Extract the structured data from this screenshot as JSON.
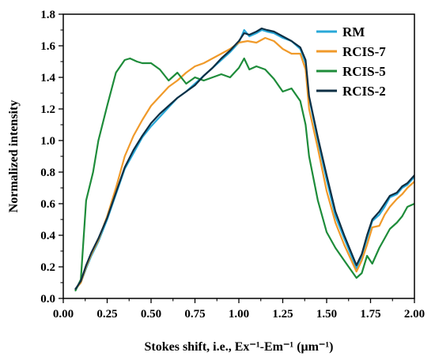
{
  "chart_data": {
    "type": "line",
    "xlabel": "Stokes shift, i.e., Ex⁻¹-Em⁻¹ (μm⁻¹)",
    "ylabel": "Normalized intensity",
    "xlim": [
      0.0,
      2.0
    ],
    "ylim": [
      0.0,
      1.8
    ],
    "xticks": [
      "0.00",
      "0.25",
      "0.50",
      "0.75",
      "1.00",
      "1.25",
      "1.50",
      "1.75",
      "2.00"
    ],
    "yticks": [
      "0.0",
      "0.2",
      "0.4",
      "0.6",
      "0.8",
      "1.0",
      "1.2",
      "1.4",
      "1.6",
      "1.8"
    ],
    "legend_position": "top-right",
    "grid": false,
    "series": [
      {
        "name": "RM",
        "color": "#29a8d8",
        "points": [
          [
            0.07,
            0.06
          ],
          [
            0.1,
            0.1
          ],
          [
            0.13,
            0.19
          ],
          [
            0.16,
            0.27
          ],
          [
            0.2,
            0.36
          ],
          [
            0.25,
            0.5
          ],
          [
            0.3,
            0.66
          ],
          [
            0.35,
            0.82
          ],
          [
            0.4,
            0.92
          ],
          [
            0.45,
            1.02
          ],
          [
            0.5,
            1.09
          ],
          [
            0.55,
            1.15
          ],
          [
            0.6,
            1.21
          ],
          [
            0.65,
            1.27
          ],
          [
            0.7,
            1.31
          ],
          [
            0.75,
            1.36
          ],
          [
            0.8,
            1.41
          ],
          [
            0.85,
            1.46
          ],
          [
            0.9,
            1.51
          ],
          [
            0.95,
            1.56
          ],
          [
            1.0,
            1.62
          ],
          [
            1.03,
            1.7
          ],
          [
            1.06,
            1.66
          ],
          [
            1.1,
            1.68
          ],
          [
            1.13,
            1.7
          ],
          [
            1.16,
            1.69
          ],
          [
            1.2,
            1.68
          ],
          [
            1.25,
            1.65
          ],
          [
            1.3,
            1.63
          ],
          [
            1.35,
            1.58
          ],
          [
            1.38,
            1.49
          ],
          [
            1.4,
            1.27
          ],
          [
            1.45,
            1.0
          ],
          [
            1.5,
            0.75
          ],
          [
            1.55,
            0.52
          ],
          [
            1.6,
            0.38
          ],
          [
            1.67,
            0.19
          ],
          [
            1.7,
            0.27
          ],
          [
            1.73,
            0.38
          ],
          [
            1.76,
            0.49
          ],
          [
            1.8,
            0.53
          ],
          [
            1.83,
            0.58
          ],
          [
            1.86,
            0.64
          ],
          [
            1.9,
            0.66
          ],
          [
            1.93,
            0.7
          ],
          [
            1.96,
            0.72
          ],
          [
            2.0,
            0.77
          ]
        ]
      },
      {
        "name": "RCIS-7",
        "color": "#f09a2a",
        "points": [
          [
            0.07,
            0.06
          ],
          [
            0.1,
            0.1
          ],
          [
            0.13,
            0.2
          ],
          [
            0.16,
            0.28
          ],
          [
            0.2,
            0.37
          ],
          [
            0.25,
            0.52
          ],
          [
            0.3,
            0.7
          ],
          [
            0.35,
            0.9
          ],
          [
            0.4,
            1.03
          ],
          [
            0.45,
            1.13
          ],
          [
            0.5,
            1.22
          ],
          [
            0.55,
            1.28
          ],
          [
            0.6,
            1.34
          ],
          [
            0.65,
            1.38
          ],
          [
            0.7,
            1.43
          ],
          [
            0.75,
            1.47
          ],
          [
            0.8,
            1.49
          ],
          [
            0.85,
            1.52
          ],
          [
            0.9,
            1.55
          ],
          [
            0.95,
            1.58
          ],
          [
            1.0,
            1.62
          ],
          [
            1.05,
            1.63
          ],
          [
            1.1,
            1.62
          ],
          [
            1.15,
            1.65
          ],
          [
            1.2,
            1.63
          ],
          [
            1.25,
            1.58
          ],
          [
            1.3,
            1.55
          ],
          [
            1.35,
            1.55
          ],
          [
            1.38,
            1.45
          ],
          [
            1.4,
            1.2
          ],
          [
            1.45,
            0.95
          ],
          [
            1.5,
            0.68
          ],
          [
            1.55,
            0.48
          ],
          [
            1.6,
            0.34
          ],
          [
            1.67,
            0.17
          ],
          [
            1.7,
            0.24
          ],
          [
            1.73,
            0.34
          ],
          [
            1.76,
            0.45
          ],
          [
            1.8,
            0.46
          ],
          [
            1.83,
            0.53
          ],
          [
            1.86,
            0.58
          ],
          [
            1.9,
            0.63
          ],
          [
            1.93,
            0.66
          ],
          [
            1.96,
            0.7
          ],
          [
            2.0,
            0.74
          ]
        ]
      },
      {
        "name": "RCIS-5",
        "color": "#1e8c3a",
        "points": [
          [
            0.07,
            0.05
          ],
          [
            0.1,
            0.12
          ],
          [
            0.13,
            0.62
          ],
          [
            0.17,
            0.8
          ],
          [
            0.2,
            1.0
          ],
          [
            0.25,
            1.22
          ],
          [
            0.3,
            1.43
          ],
          [
            0.35,
            1.51
          ],
          [
            0.38,
            1.52
          ],
          [
            0.42,
            1.5
          ],
          [
            0.45,
            1.49
          ],
          [
            0.5,
            1.49
          ],
          [
            0.55,
            1.45
          ],
          [
            0.6,
            1.38
          ],
          [
            0.65,
            1.43
          ],
          [
            0.7,
            1.36
          ],
          [
            0.75,
            1.4
          ],
          [
            0.8,
            1.38
          ],
          [
            0.85,
            1.4
          ],
          [
            0.9,
            1.42
          ],
          [
            0.95,
            1.4
          ],
          [
            1.0,
            1.46
          ],
          [
            1.03,
            1.52
          ],
          [
            1.06,
            1.45
          ],
          [
            1.1,
            1.47
          ],
          [
            1.15,
            1.45
          ],
          [
            1.2,
            1.39
          ],
          [
            1.25,
            1.31
          ],
          [
            1.3,
            1.33
          ],
          [
            1.35,
            1.25
          ],
          [
            1.38,
            1.1
          ],
          [
            1.4,
            0.9
          ],
          [
            1.45,
            0.62
          ],
          [
            1.5,
            0.42
          ],
          [
            1.55,
            0.32
          ],
          [
            1.6,
            0.24
          ],
          [
            1.67,
            0.13
          ],
          [
            1.7,
            0.16
          ],
          [
            1.73,
            0.27
          ],
          [
            1.76,
            0.22
          ],
          [
            1.8,
            0.32
          ],
          [
            1.83,
            0.38
          ],
          [
            1.86,
            0.44
          ],
          [
            1.9,
            0.48
          ],
          [
            1.93,
            0.52
          ],
          [
            1.96,
            0.58
          ],
          [
            2.0,
            0.6
          ]
        ]
      },
      {
        "name": "RCIS-2",
        "color": "#0e2f44",
        "points": [
          [
            0.07,
            0.06
          ],
          [
            0.1,
            0.11
          ],
          [
            0.13,
            0.21
          ],
          [
            0.16,
            0.29
          ],
          [
            0.2,
            0.38
          ],
          [
            0.25,
            0.51
          ],
          [
            0.3,
            0.67
          ],
          [
            0.35,
            0.83
          ],
          [
            0.4,
            0.94
          ],
          [
            0.45,
            1.03
          ],
          [
            0.5,
            1.11
          ],
          [
            0.55,
            1.17
          ],
          [
            0.6,
            1.22
          ],
          [
            0.65,
            1.27
          ],
          [
            0.7,
            1.31
          ],
          [
            0.75,
            1.35
          ],
          [
            0.8,
            1.41
          ],
          [
            0.85,
            1.46
          ],
          [
            0.9,
            1.52
          ],
          [
            0.95,
            1.57
          ],
          [
            1.0,
            1.63
          ],
          [
            1.03,
            1.68
          ],
          [
            1.06,
            1.67
          ],
          [
            1.1,
            1.69
          ],
          [
            1.13,
            1.71
          ],
          [
            1.16,
            1.7
          ],
          [
            1.2,
            1.69
          ],
          [
            1.25,
            1.66
          ],
          [
            1.3,
            1.63
          ],
          [
            1.35,
            1.59
          ],
          [
            1.38,
            1.51
          ],
          [
            1.4,
            1.28
          ],
          [
            1.45,
            1.02
          ],
          [
            1.5,
            0.78
          ],
          [
            1.55,
            0.55
          ],
          [
            1.6,
            0.4
          ],
          [
            1.67,
            0.21
          ],
          [
            1.7,
            0.28
          ],
          [
            1.73,
            0.4
          ],
          [
            1.76,
            0.5
          ],
          [
            1.8,
            0.55
          ],
          [
            1.83,
            0.6
          ],
          [
            1.86,
            0.65
          ],
          [
            1.9,
            0.67
          ],
          [
            1.93,
            0.71
          ],
          [
            1.96,
            0.73
          ],
          [
            2.0,
            0.78
          ]
        ]
      }
    ]
  }
}
